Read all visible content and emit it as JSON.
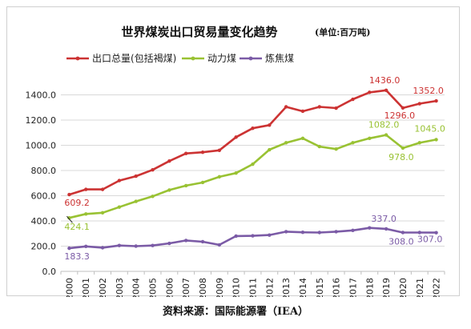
{
  "chart_data": {
    "type": "line",
    "title": "世界煤炭出口贸易量变化趋势",
    "unit": "(单位:百万吨)",
    "xlabel": "",
    "ylabel": "",
    "ylim": [
      0,
      1600
    ],
    "yticks": [
      "0.0",
      "200.0",
      "400.0",
      "600.0",
      "800.0",
      "1000.0",
      "1200.0",
      "1400.0"
    ],
    "grid": true,
    "legend_position": "top-left",
    "categories": [
      "2000",
      "2001",
      "2002",
      "2003",
      "2004",
      "2005",
      "2006",
      "2007",
      "2008",
      "2009",
      "2010",
      "2011",
      "2012",
      "2013",
      "2014",
      "2015",
      "2016",
      "2017",
      "2018",
      "2019",
      "2020",
      "2021",
      "2022"
    ],
    "series": [
      {
        "name": "出口总量(包括褐煤)",
        "color": "#cc3333",
        "values": [
          609.2,
          650,
          650,
          720,
          755,
          805,
          875,
          935,
          945,
          960,
          1065,
          1135,
          1160,
          1305,
          1270,
          1305,
          1295,
          1365,
          1420,
          1436.0,
          1296.0,
          1330,
          1352.0
        ],
        "labels": [
          {
            "index": 0,
            "text": "609.2"
          },
          {
            "index": 19,
            "text": "1436.0"
          },
          {
            "index": 20,
            "text": "1296.0"
          },
          {
            "index": 22,
            "text": "1352.0"
          }
        ]
      },
      {
        "name": "动力煤",
        "color": "#99c233",
        "values": [
          424.1,
          455,
          465,
          510,
          555,
          595,
          645,
          680,
          705,
          750,
          780,
          850,
          965,
          1020,
          1055,
          990,
          970,
          1020,
          1055,
          1082.0,
          978.0,
          1020,
          1045.0
        ],
        "labels": [
          {
            "index": 0,
            "text": "424.1"
          },
          {
            "index": 19,
            "text": "1082.0"
          },
          {
            "index": 20,
            "text": "978.0"
          },
          {
            "index": 22,
            "text": "1045.0"
          }
        ]
      },
      {
        "name": "炼焦煤",
        "color": "#7b5ba6",
        "values": [
          183.3,
          198,
          188,
          205,
          200,
          205,
          222,
          245,
          235,
          210,
          280,
          282,
          288,
          315,
          310,
          308,
          315,
          325,
          345,
          337.0,
          308.0,
          308,
          307.0
        ],
        "labels": [
          {
            "index": 0,
            "text": "183.3"
          },
          {
            "index": 19,
            "text": "337.0"
          },
          {
            "index": 20,
            "text": "308.0"
          },
          {
            "index": 22,
            "text": "307.0"
          }
        ]
      }
    ]
  },
  "source_note": "资料来源：国际能源署（IEA）"
}
